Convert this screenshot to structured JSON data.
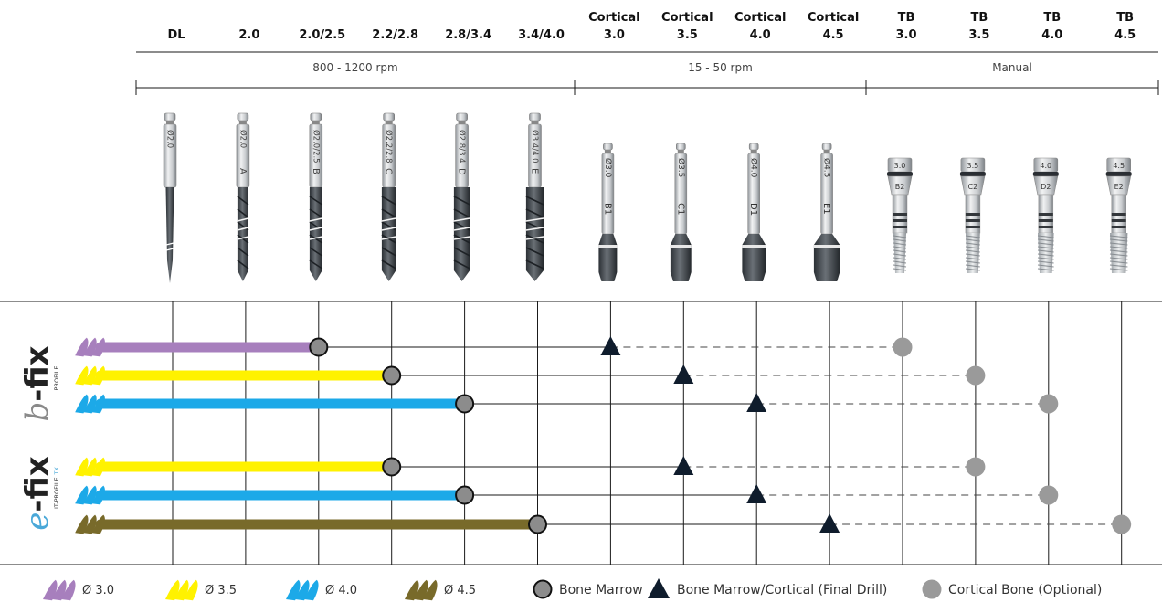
{
  "columns": [
    {
      "label1": "",
      "label2": "DL",
      "shank": "Ø2.0",
      "letter": "",
      "kind": "pilot"
    },
    {
      "label1": "",
      "label2": "2.0",
      "shank": "Ø2.0",
      "letter": "A",
      "kind": "twist"
    },
    {
      "label1": "",
      "label2": "2.0/2.5",
      "shank": "Ø2.0/2.5",
      "letter": "B",
      "kind": "twist"
    },
    {
      "label1": "",
      "label2": "2.2/2.8",
      "shank": "Ø2.2/2.8",
      "letter": "C",
      "kind": "twist"
    },
    {
      "label1": "",
      "label2": "2.8/3.4",
      "shank": "Ø2.8/3.4",
      "letter": "D",
      "kind": "twist"
    },
    {
      "label1": "",
      "label2": "3.4/4.0",
      "shank": "Ø3.4/4.0",
      "letter": "E",
      "kind": "twist"
    },
    {
      "label1": "Cortical",
      "label2": "3.0",
      "shank": "Ø3.0",
      "letter": "B1",
      "kind": "cortical"
    },
    {
      "label1": "Cortical",
      "label2": "3.5",
      "shank": "Ø3.5",
      "letter": "C1",
      "kind": "cortical"
    },
    {
      "label1": "Cortical",
      "label2": "4.0",
      "shank": "Ø4.0",
      "letter": "D1",
      "kind": "cortical"
    },
    {
      "label1": "Cortical",
      "label2": "4.5",
      "shank": "Ø4.5",
      "letter": "E1",
      "kind": "cortical"
    },
    {
      "label1": "TB",
      "label2": "3.0",
      "shank": "3.0",
      "letter": "B2",
      "kind": "tap"
    },
    {
      "label1": "TB",
      "label2": "3.5",
      "shank": "3.5",
      "letter": "C2",
      "kind": "tap"
    },
    {
      "label1": "TB",
      "label2": "4.0",
      "shank": "4.0",
      "letter": "D2",
      "kind": "tap"
    },
    {
      "label1": "TB",
      "label2": "4.5",
      "shank": "4.5",
      "letter": "E2",
      "kind": "tap"
    }
  ],
  "speed_ranges": [
    {
      "label": "800 - 1200 rpm",
      "from": 0,
      "to": 5
    },
    {
      "label": "15 - 50 rpm",
      "from": 6,
      "to": 9
    },
    {
      "label": "Manual",
      "from": 10,
      "to": 13
    }
  ],
  "systems": [
    {
      "brand_prefix": "b",
      "brand_main": "-fix",
      "sub": "PROFILE",
      "sub_suffix": "",
      "prefix_color": "#8a8a8a",
      "rows": [
        0,
        1,
        2
      ]
    },
    {
      "brand_prefix": "e",
      "brand_main": "-fix",
      "sub": "IT-PROFILE",
      "sub_suffix": "TX",
      "prefix_color": "#4aa8d8",
      "rows": [
        3,
        4,
        5
      ]
    }
  ],
  "rows": [
    {
      "diameter": "Ø 3.0",
      "color": "#a77fbd",
      "bone_marrow_col": 2,
      "final_drill_col": 6,
      "optional_col": 10
    },
    {
      "diameter": "Ø 3.5",
      "color": "#fff200",
      "bone_marrow_col": 3,
      "final_drill_col": 7,
      "optional_col": 11
    },
    {
      "diameter": "Ø 4.0",
      "color": "#1ca9e8",
      "bone_marrow_col": 4,
      "final_drill_col": 8,
      "optional_col": 12
    },
    {
      "diameter": "Ø 3.5",
      "color": "#fff200",
      "bone_marrow_col": 3,
      "final_drill_col": 7,
      "optional_col": 11
    },
    {
      "diameter": "Ø 4.0",
      "color": "#1ca9e8",
      "bone_marrow_col": 4,
      "final_drill_col": 8,
      "optional_col": 12
    },
    {
      "diameter": "Ø 4.5",
      "color": "#786a2a",
      "bone_marrow_col": 5,
      "final_drill_col": 9,
      "optional_col": 13
    }
  ],
  "legend": {
    "diameters": [
      {
        "label": "Ø 3.0",
        "color": "#a77fbd"
      },
      {
        "label": "Ø 3.5",
        "color": "#fff200"
      },
      {
        "label": "Ø 4.0",
        "color": "#1ca9e8"
      },
      {
        "label": "Ø 4.5",
        "color": "#786a2a"
      }
    ],
    "bone_marrow": "Bone Marrow",
    "final_drill": "Bone Marrow/Cortical (Final Drill)",
    "optional": "Cortical Bone (Optional)"
  },
  "colors": {
    "line": "#1a1a1a",
    "marker_fill": "#8c8c8c",
    "optional_fill": "#9a9a9a",
    "triangle": "#0f1c2c",
    "steel_light": "#d9dcdf",
    "steel_dark": "#6e7378",
    "coated": "#3a3f45"
  }
}
